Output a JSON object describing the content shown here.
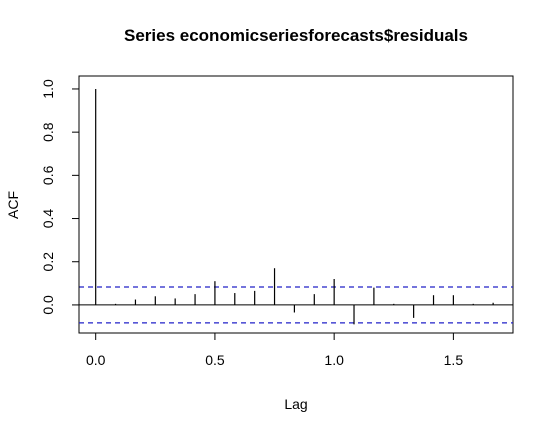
{
  "chart_data": {
    "type": "bar",
    "title": "Series  economicseriesforecasts$residuals",
    "xlabel": "Lag",
    "ylabel": "ACF",
    "xlim": [
      -0.07,
      1.75
    ],
    "ylim": [
      -0.13,
      1.06
    ],
    "xticks": [
      0.0,
      0.5,
      1.0,
      1.5
    ],
    "xtick_labels": [
      "0.0",
      "0.5",
      "1.0",
      "1.5"
    ],
    "yticks": [
      0.0,
      0.2,
      0.4,
      0.6,
      0.8,
      1.0
    ],
    "ytick_labels": [
      "0.0",
      "0.2",
      "0.4",
      "0.6",
      "0.8",
      "1.0"
    ],
    "confidence_bounds": [
      0.083,
      -0.083
    ],
    "lags": [
      0.0,
      0.0833,
      0.1667,
      0.25,
      0.3333,
      0.4167,
      0.5,
      0.5833,
      0.6667,
      0.75,
      0.8333,
      0.9167,
      1.0,
      1.0833,
      1.1667,
      1.25,
      1.3333,
      1.4167,
      1.5,
      1.5833,
      1.6667
    ],
    "values": [
      1.0,
      0.005,
      0.025,
      0.04,
      0.03,
      0.05,
      0.11,
      0.055,
      0.065,
      0.17,
      -0.035,
      0.05,
      0.12,
      -0.09,
      0.08,
      0.005,
      -0.06,
      0.045,
      0.045,
      0.005,
      0.01
    ],
    "grid": false,
    "legend": "none"
  }
}
